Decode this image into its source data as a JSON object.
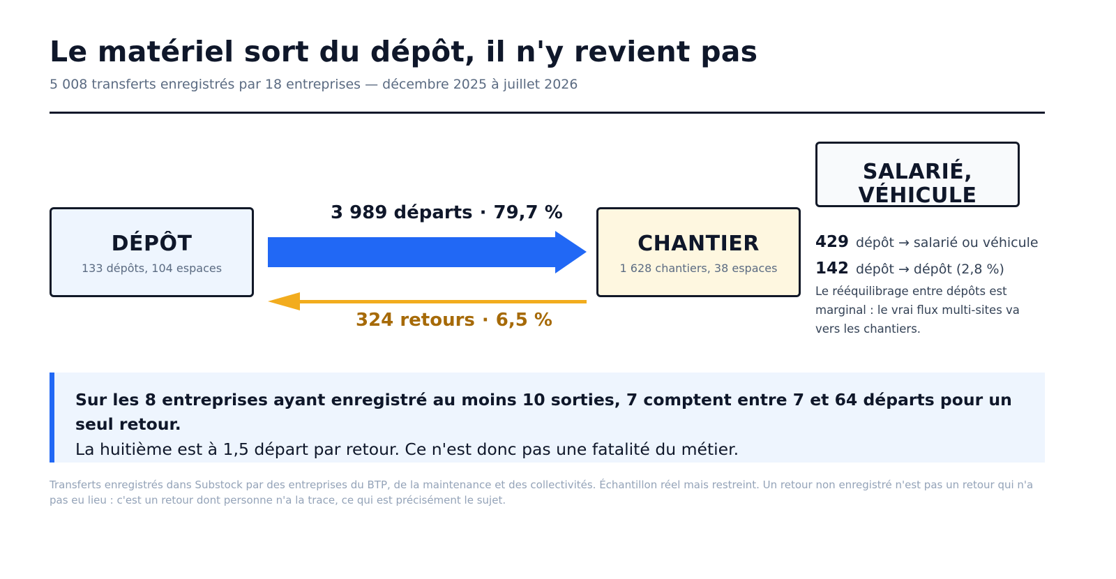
{
  "header": {
    "title": "Le matériel sort du dépôt, il n'y revient pas",
    "subtitle": "5 008 transferts enregistrés par 18 entreprises — décembre 2025 à juillet 2026"
  },
  "nodes": {
    "depot": {
      "title": "DÉPÔT",
      "subtitle": "133 dépôts, 104 espaces"
    },
    "chantier": {
      "title": "CHANTIER",
      "subtitle": "1 628 chantiers, 38 espaces"
    },
    "salarie": {
      "title_line1": "SALARIÉ,",
      "title_line2": "VÉHICULE"
    }
  },
  "flows": {
    "departs": {
      "count": "3 989 départs",
      "share": "79,7 %",
      "color": "#2168f5"
    },
    "retours": {
      "count": "324 retours",
      "share": "6,5 %",
      "color": "#f2ac1e"
    },
    "separator": "·"
  },
  "side_stats": {
    "items": [
      {
        "value": "429",
        "label": "dépôt → salarié ou véhicule"
      },
      {
        "value": "142",
        "label": "dépôt → dépôt (2,8 %)"
      }
    ],
    "note": "Le rééquilibrage entre dépôts est marginal : le vrai flux multi-sites va vers les chantiers."
  },
  "callout": {
    "strong": "Sur les 8 entreprises ayant enregistré au moins 10 sorties, 7 comptent entre 7 et 64 départs pour un seul retour.",
    "text": "La huitième est à 1,5 départ par retour. Ce n'est donc pas une fatalité du métier.",
    "accent_color": "#2168f5"
  },
  "footnote": "Transferts enregistrés dans Substock par des entreprises du BTP, de la maintenance et des collectivités. Échantillon réel mais restreint. Un retour non enregistré n'est pas un retour qui n'a pas eu lieu : c'est un retour dont personne n'a la trace, ce qui est précisément le sujet."
}
